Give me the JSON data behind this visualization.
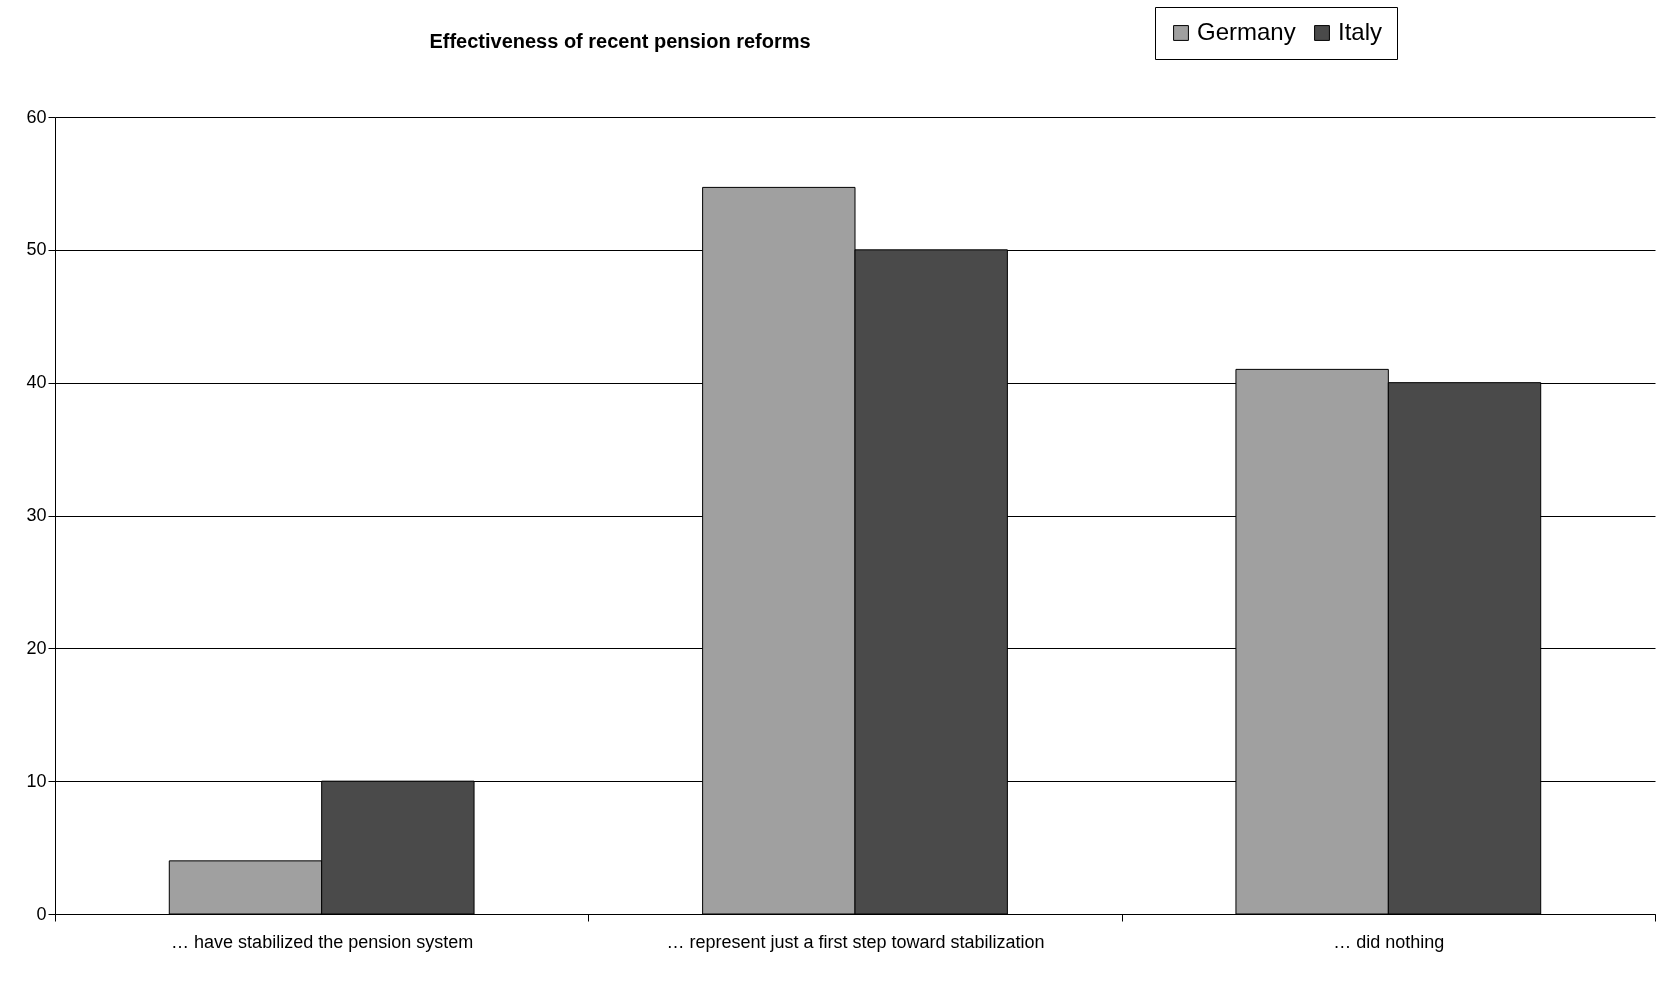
{
  "chart_data": {
    "type": "bar",
    "title": "Effectiveness of recent pension reforms",
    "categories": [
      "… have stabilized the pension system",
      "… represent just a first step toward stabilization",
      "… did nothing"
    ],
    "series": [
      {
        "name": "Germany",
        "color": "#a0a0a0",
        "values": [
          4,
          54.7,
          41
        ]
      },
      {
        "name": "Italy",
        "color": "#4a4a4a",
        "values": [
          10,
          50,
          40
        ]
      }
    ],
    "ylim": [
      0,
      60
    ],
    "yticks": [
      0,
      10,
      20,
      30,
      40,
      50,
      60
    ],
    "grid": "y",
    "legend": "top right"
  }
}
